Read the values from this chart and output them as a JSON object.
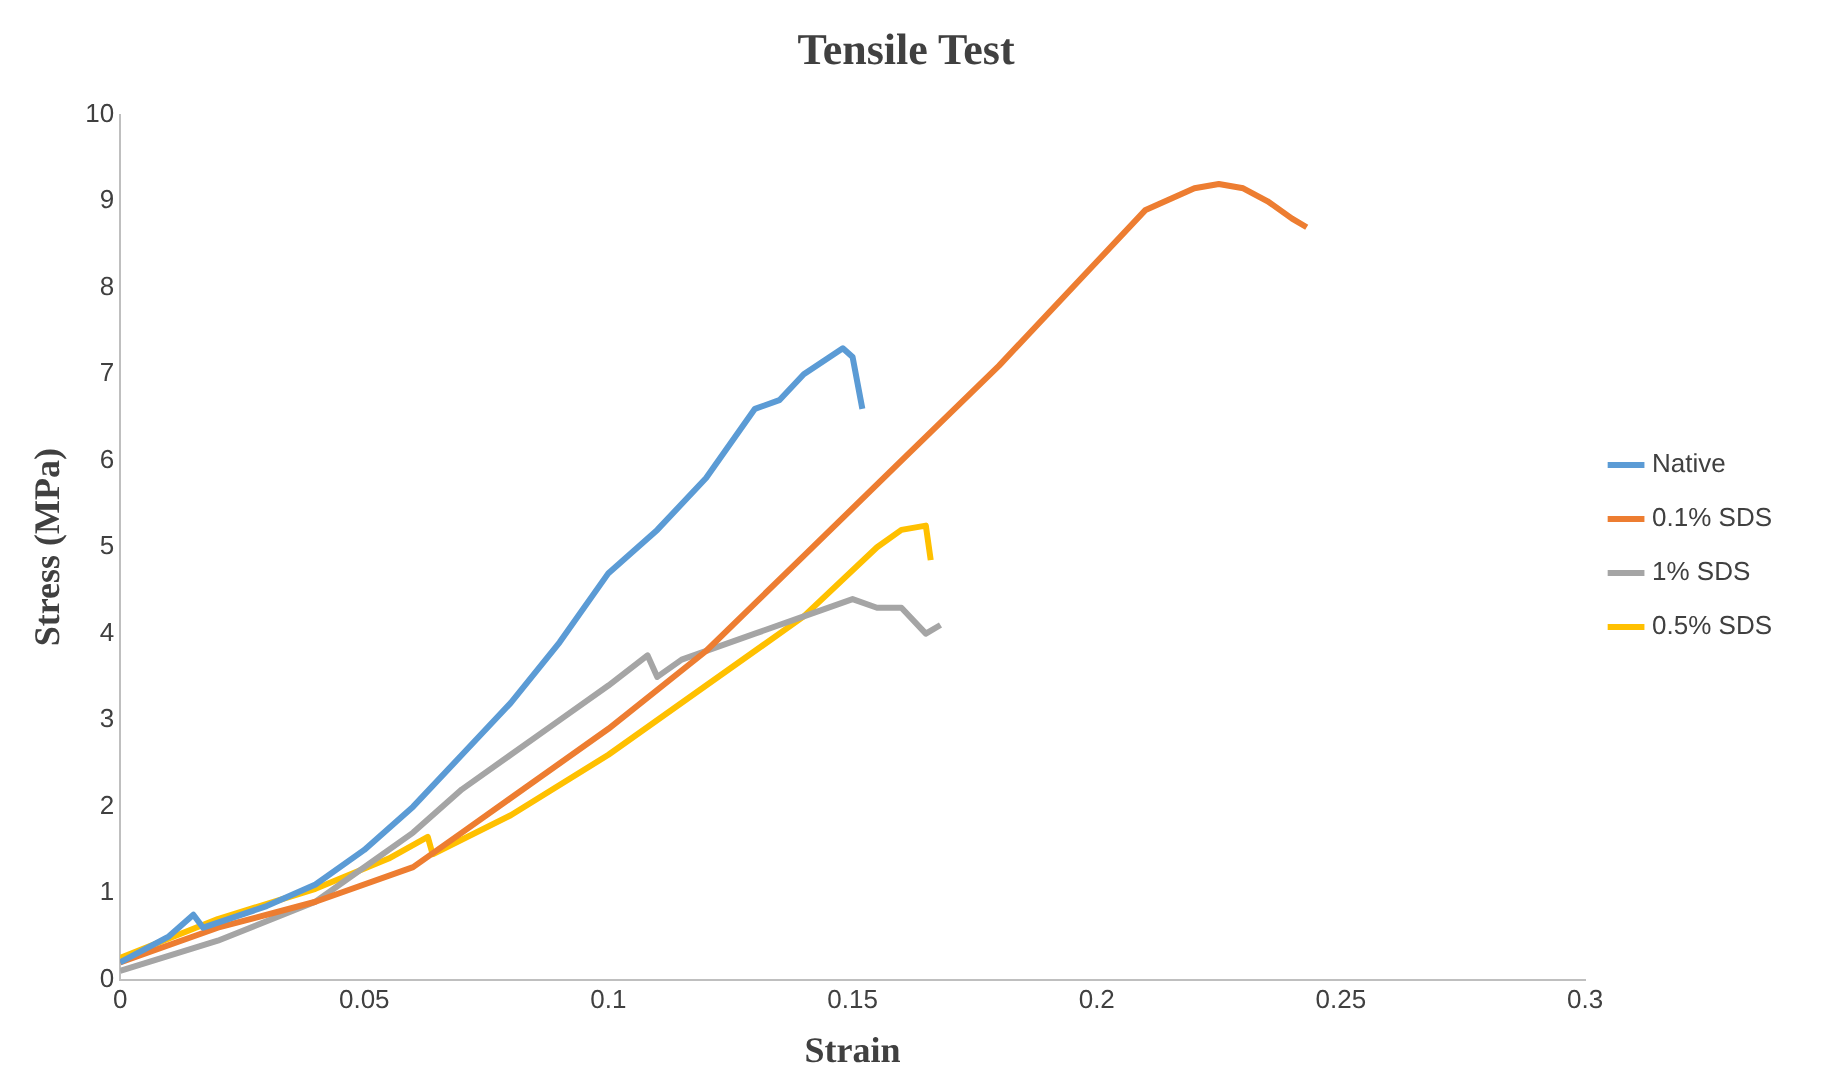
{
  "chart_data": {
    "type": "line",
    "title": "Tensile Test",
    "xlabel": "Strain",
    "ylabel": "Stress (MPa)",
    "xlim": [
      0,
      0.3
    ],
    "xticks": [
      0,
      0.05,
      0.1,
      0.15,
      0.2,
      0.25,
      0.3
    ],
    "ylim": [
      0,
      10
    ],
    "yticks": [
      0,
      1,
      2,
      3,
      4,
      5,
      6,
      7,
      8,
      9,
      10
    ],
    "grid": false,
    "legend": "right",
    "marker": "none",
    "line_style": "solid",
    "series": [
      {
        "name": "Native",
        "color": "#5b9bd5",
        "x": [
          0,
          0.01,
          0.015,
          0.017,
          0.03,
          0.04,
          0.05,
          0.06,
          0.07,
          0.08,
          0.09,
          0.1,
          0.11,
          0.12,
          0.13,
          0.135,
          0.14,
          0.148,
          0.15,
          0.152
        ],
        "values": [
          0.2,
          0.5,
          0.75,
          0.6,
          0.85,
          1.1,
          1.5,
          2.0,
          2.6,
          3.2,
          3.9,
          4.7,
          5.2,
          5.8,
          6.6,
          6.7,
          7.0,
          7.3,
          7.2,
          6.6
        ]
      },
      {
        "name": "0.1% SDS",
        "color": "#ed7d31",
        "x": [
          0,
          0.02,
          0.04,
          0.06,
          0.07,
          0.08,
          0.1,
          0.12,
          0.14,
          0.16,
          0.18,
          0.2,
          0.21,
          0.22,
          0.225,
          0.23,
          0.235,
          0.24,
          0.243
        ],
        "values": [
          0.2,
          0.6,
          0.9,
          1.3,
          1.7,
          2.1,
          2.9,
          3.8,
          4.9,
          6.0,
          7.1,
          8.3,
          8.9,
          9.15,
          9.2,
          9.15,
          9.0,
          8.8,
          8.7
        ]
      },
      {
        "name": "1% SDS",
        "color": "#a5a5a5",
        "x": [
          0,
          0.02,
          0.04,
          0.06,
          0.07,
          0.08,
          0.09,
          0.1,
          0.108,
          0.11,
          0.115,
          0.13,
          0.14,
          0.15,
          0.155,
          0.16,
          0.165,
          0.168
        ],
        "values": [
          0.1,
          0.45,
          0.9,
          1.7,
          2.2,
          2.6,
          3.0,
          3.4,
          3.75,
          3.5,
          3.7,
          4.0,
          4.2,
          4.4,
          4.3,
          4.3,
          4.0,
          4.1
        ]
      },
      {
        "name": "0.5% SDS",
        "color": "#ffc000",
        "x": [
          0,
          0.02,
          0.04,
          0.055,
          0.063,
          0.064,
          0.08,
          0.1,
          0.12,
          0.14,
          0.155,
          0.16,
          0.165,
          0.166
        ],
        "values": [
          0.25,
          0.7,
          1.05,
          1.4,
          1.65,
          1.45,
          1.9,
          2.6,
          3.4,
          4.2,
          5.0,
          5.2,
          5.25,
          4.85
        ]
      }
    ]
  }
}
